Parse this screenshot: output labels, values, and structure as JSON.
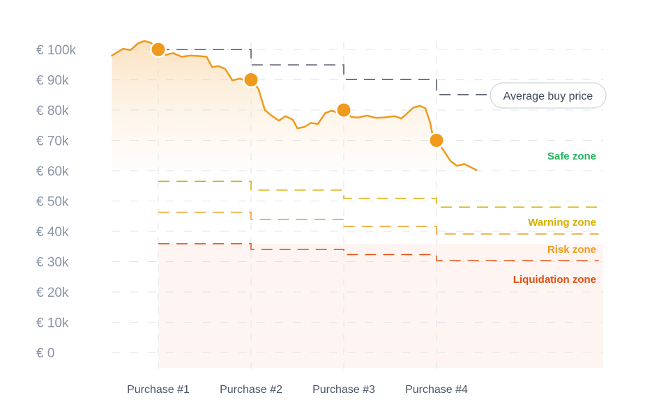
{
  "colors": {
    "price_line": "#ef9a1c",
    "avg_price": "#4a5262",
    "safe": "#27b35f",
    "warning": "#d6ae00",
    "risk": "#ef9a1c",
    "liquidation": "#e04e12",
    "grid": "#dfe3ea",
    "axis_text": "#8a94a6"
  },
  "chart_data": {
    "type": "line",
    "ylim": [
      0,
      100000
    ],
    "y_ticks": [
      {
        "value": 100000,
        "label": "€ 100k"
      },
      {
        "value": 90000,
        "label": "€ 90k"
      },
      {
        "value": 80000,
        "label": "€ 80k"
      },
      {
        "value": 70000,
        "label": "€ 70k"
      },
      {
        "value": 60000,
        "label": "€ 60k"
      },
      {
        "value": 50000,
        "label": "€ 50k"
      },
      {
        "value": 40000,
        "label": "€ 40k"
      },
      {
        "value": 30000,
        "label": "€ 30k"
      },
      {
        "value": 20000,
        "label": "€ 20k"
      },
      {
        "value": 10000,
        "label": "€ 10k"
      },
      {
        "value": 0,
        "label": "€ 0"
      }
    ],
    "x_range": [
      -0.5,
      4.75
    ],
    "x_ticks": [
      {
        "value": 0,
        "label": "Purchase #1"
      },
      {
        "value": 1,
        "label": "Purchase #2"
      },
      {
        "value": 2,
        "label": "Purchase #3"
      },
      {
        "value": 3,
        "label": "Purchase #4"
      }
    ],
    "purchases": [
      {
        "x": 0,
        "price": 100000
      },
      {
        "x": 1,
        "price": 90000
      },
      {
        "x": 2,
        "price": 80000
      },
      {
        "x": 3,
        "price": 70000
      }
    ],
    "price_series": [
      [
        -0.5,
        98000
      ],
      [
        -0.38,
        100200
      ],
      [
        -0.3,
        99800
      ],
      [
        -0.22,
        102000
      ],
      [
        -0.15,
        102800
      ],
      [
        -0.08,
        102200
      ],
      [
        0,
        100000
      ],
      [
        0.08,
        98200
      ],
      [
        0.16,
        98800
      ],
      [
        0.25,
        97600
      ],
      [
        0.35,
        98000
      ],
      [
        0.45,
        97800
      ],
      [
        0.52,
        97600
      ],
      [
        0.58,
        94200
      ],
      [
        0.65,
        94500
      ],
      [
        0.72,
        93600
      ],
      [
        0.8,
        89800
      ],
      [
        0.88,
        90400
      ],
      [
        0.95,
        89600
      ],
      [
        1,
        90000
      ],
      [
        1.08,
        87000
      ],
      [
        1.15,
        80000
      ],
      [
        1.22,
        78200
      ],
      [
        1.3,
        76500
      ],
      [
        1.37,
        78000
      ],
      [
        1.45,
        76800
      ],
      [
        1.5,
        74000
      ],
      [
        1.57,
        74400
      ],
      [
        1.65,
        75800
      ],
      [
        1.72,
        75400
      ],
      [
        1.8,
        79000
      ],
      [
        1.87,
        79800
      ],
      [
        1.93,
        79200
      ],
      [
        2,
        80000
      ],
      [
        2.08,
        77800
      ],
      [
        2.15,
        77500
      ],
      [
        2.25,
        78200
      ],
      [
        2.35,
        77400
      ],
      [
        2.45,
        77600
      ],
      [
        2.55,
        78000
      ],
      [
        2.62,
        77200
      ],
      [
        2.68,
        78800
      ],
      [
        2.75,
        80800
      ],
      [
        2.82,
        81400
      ],
      [
        2.88,
        80600
      ],
      [
        2.93,
        76000
      ],
      [
        2.97,
        70000
      ],
      [
        3,
        70000
      ],
      [
        3.08,
        66500
      ],
      [
        3.15,
        63200
      ],
      [
        3.22,
        61600
      ],
      [
        3.3,
        62200
      ],
      [
        3.38,
        61000
      ],
      [
        3.43,
        60200
      ]
    ],
    "avg_buy_price": [
      {
        "from": 0,
        "to": 1,
        "value": 100000
      },
      {
        "from": 1,
        "to": 2,
        "value": 94900
      },
      {
        "from": 2,
        "to": 3,
        "value": 90100
      },
      {
        "from": 3,
        "to": 3.55,
        "value": 85100
      }
    ],
    "zones": [
      {
        "name": "Warning zone",
        "steps": [
          {
            "from": 0,
            "to": 1,
            "value": 56500
          },
          {
            "from": 1,
            "to": 2,
            "value": 53600
          },
          {
            "from": 2,
            "to": 3,
            "value": 50900
          },
          {
            "from": 3,
            "to": 4.75,
            "value": 48000
          }
        ]
      },
      {
        "name": "Risk zone",
        "steps": [
          {
            "from": 0,
            "to": 1,
            "value": 46300
          },
          {
            "from": 1,
            "to": 2,
            "value": 43900
          },
          {
            "from": 2,
            "to": 3,
            "value": 41600
          },
          {
            "from": 3,
            "to": 4.75,
            "value": 39100
          }
        ]
      },
      {
        "name": "Liquidation zone",
        "steps": [
          {
            "from": 0,
            "to": 1,
            "value": 35900
          },
          {
            "from": 1,
            "to": 2,
            "value": 34000
          },
          {
            "from": 2,
            "to": 3,
            "value": 32300
          },
          {
            "from": 3,
            "to": 4.75,
            "value": 30300
          }
        ]
      }
    ],
    "labels": {
      "avg_buy_price": "Average buy price",
      "safe_zone": "Safe zone",
      "warning_zone": "Warning zone",
      "risk_zone": "Risk zone",
      "liquidation_zone": "Liquidation zone"
    },
    "grid": true
  }
}
